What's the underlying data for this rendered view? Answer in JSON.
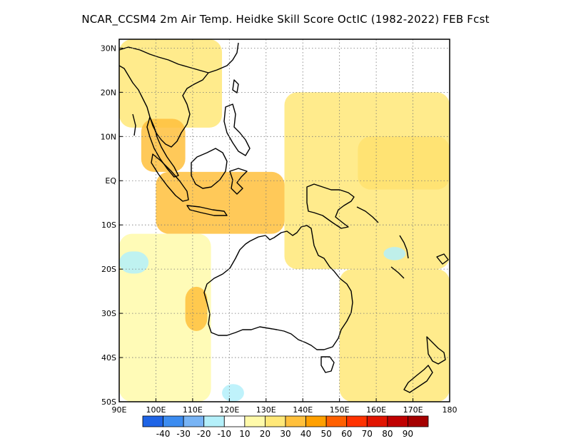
{
  "title": "NCAR_CCSM4  2m Air Temp. Heidke Skill Score OctIC (1982-2022) FEB Fcst",
  "map": {
    "lon_range": [
      90,
      180
    ],
    "lat_range": [
      -50,
      32
    ],
    "lon_ticks": [
      {
        "lon": 90,
        "label": "90E"
      },
      {
        "lon": 100,
        "label": "100E"
      },
      {
        "lon": 110,
        "label": "110E"
      },
      {
        "lon": 120,
        "label": "120E"
      },
      {
        "lon": 130,
        "label": "130E"
      },
      {
        "lon": 140,
        "label": "140E"
      },
      {
        "lon": 150,
        "label": "150E"
      },
      {
        "lon": 160,
        "label": "160E"
      },
      {
        "lon": 170,
        "label": "170E"
      },
      {
        "lon": 180,
        "label": "180"
      }
    ],
    "lat_ticks": [
      {
        "lat": 30,
        "label": "30N"
      },
      {
        "lat": 20,
        "label": "20N"
      },
      {
        "lat": 10,
        "label": "10N"
      },
      {
        "lat": 0,
        "label": "EQ"
      },
      {
        "lat": -10,
        "label": "10S"
      },
      {
        "lat": -20,
        "label": "20S"
      },
      {
        "lat": -30,
        "label": "30S"
      },
      {
        "lat": -40,
        "label": "40S"
      },
      {
        "lat": -50,
        "label": "50S"
      }
    ],
    "grid": "dotted"
  },
  "colorbar": {
    "colors": [
      "#1e64e6",
      "#3c8cf0",
      "#78b4f5",
      "#b4f0fa",
      "#ffffff",
      "#fffaaa",
      "#ffe878",
      "#ffc03c",
      "#ffa000",
      "#ff6000",
      "#ff3200",
      "#e11400",
      "#c00000",
      "#a50000"
    ],
    "labels": [
      "-40",
      "-30",
      "-20",
      "-10",
      "10",
      "20",
      "30",
      "40",
      "50",
      "60",
      "70",
      "80",
      "90"
    ]
  },
  "regions": [
    {
      "name": "northwest-tropics",
      "color": "#ffe878",
      "lon": [
        90,
        118
      ],
      "lat": [
        12,
        32
      ]
    },
    {
      "name": "indochina-warm",
      "color": "#ffc03c",
      "lon": [
        96,
        108
      ],
      "lat": [
        2,
        14
      ]
    },
    {
      "name": "maritime-continent",
      "color": "#ffc03c",
      "lon": [
        100,
        135
      ],
      "lat": [
        -12,
        2
      ]
    },
    {
      "name": "western-pacific-warm",
      "color": "#ffc03c",
      "lon": [
        155,
        180
      ],
      "lat": [
        -2,
        10
      ]
    },
    {
      "name": "central-pacific",
      "color": "#ffe878",
      "lon": [
        135,
        180
      ],
      "lat": [
        -20,
        20
      ]
    },
    {
      "name": "south-indian",
      "color": "#fffaaa",
      "lon": [
        90,
        115
      ],
      "lat": [
        -50,
        -12
      ]
    },
    {
      "name": "tasman",
      "color": "#ffe878",
      "lon": [
        150,
        180
      ],
      "lat": [
        -50,
        -20
      ]
    },
    {
      "name": "western-australia-warm",
      "color": "#ffc03c",
      "lon": [
        108,
        114
      ],
      "lat": [
        -34,
        -24
      ]
    },
    {
      "name": "cool-patch-south-indian",
      "color": "#b4f0fa",
      "lon": [
        90,
        98
      ],
      "lat": [
        -21,
        -16
      ]
    },
    {
      "name": "cool-patch-bight",
      "color": "#b4f0fa",
      "lon": [
        118,
        124
      ],
      "lat": [
        -50,
        -46
      ]
    },
    {
      "name": "cool-patch-east",
      "color": "#b4f0fa",
      "lon": [
        162,
        168
      ],
      "lat": [
        -18,
        -15
      ]
    }
  ]
}
